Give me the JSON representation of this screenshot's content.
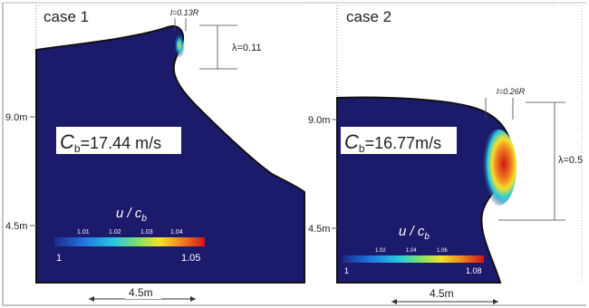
{
  "panels": [
    {
      "title": "case 1",
      "thickness_label": "l=0.13R",
      "lambda_label": "λ=0.11",
      "speed_symbol": "C",
      "speed_sub": "b",
      "speed_value": "=17.44 m/s",
      "y_ticks": [
        "9.0m",
        "4.5m"
      ],
      "colorbar_title": "u / c",
      "colorbar_title_sub": "b",
      "colorbar_ticks": [
        "1.01",
        "1.02",
        "1.03",
        "1.04"
      ],
      "colorbar_min": "1",
      "colorbar_max": "1.05",
      "scale_label": "4.5m"
    },
    {
      "title": "case 2",
      "thickness_label": "l=0.26R",
      "lambda_label": "λ=0.5",
      "speed_symbol": "C",
      "speed_sub": "b",
      "speed_value": "=16.77m/s",
      "y_ticks": [
        "9.0m",
        "4.5m"
      ],
      "colorbar_title": "u / c",
      "colorbar_title_sub": "b",
      "colorbar_ticks": [
        "1.02",
        "1.04",
        "1.06"
      ],
      "colorbar_min": "1",
      "colorbar_max": "1.08",
      "scale_label": "4.5m"
    }
  ],
  "colors": {
    "fluid": "#1b1a6b",
    "surface_line": "#111111",
    "hot": "#e02010",
    "warm": "#f5d020",
    "cool": "#2a8cf0"
  }
}
